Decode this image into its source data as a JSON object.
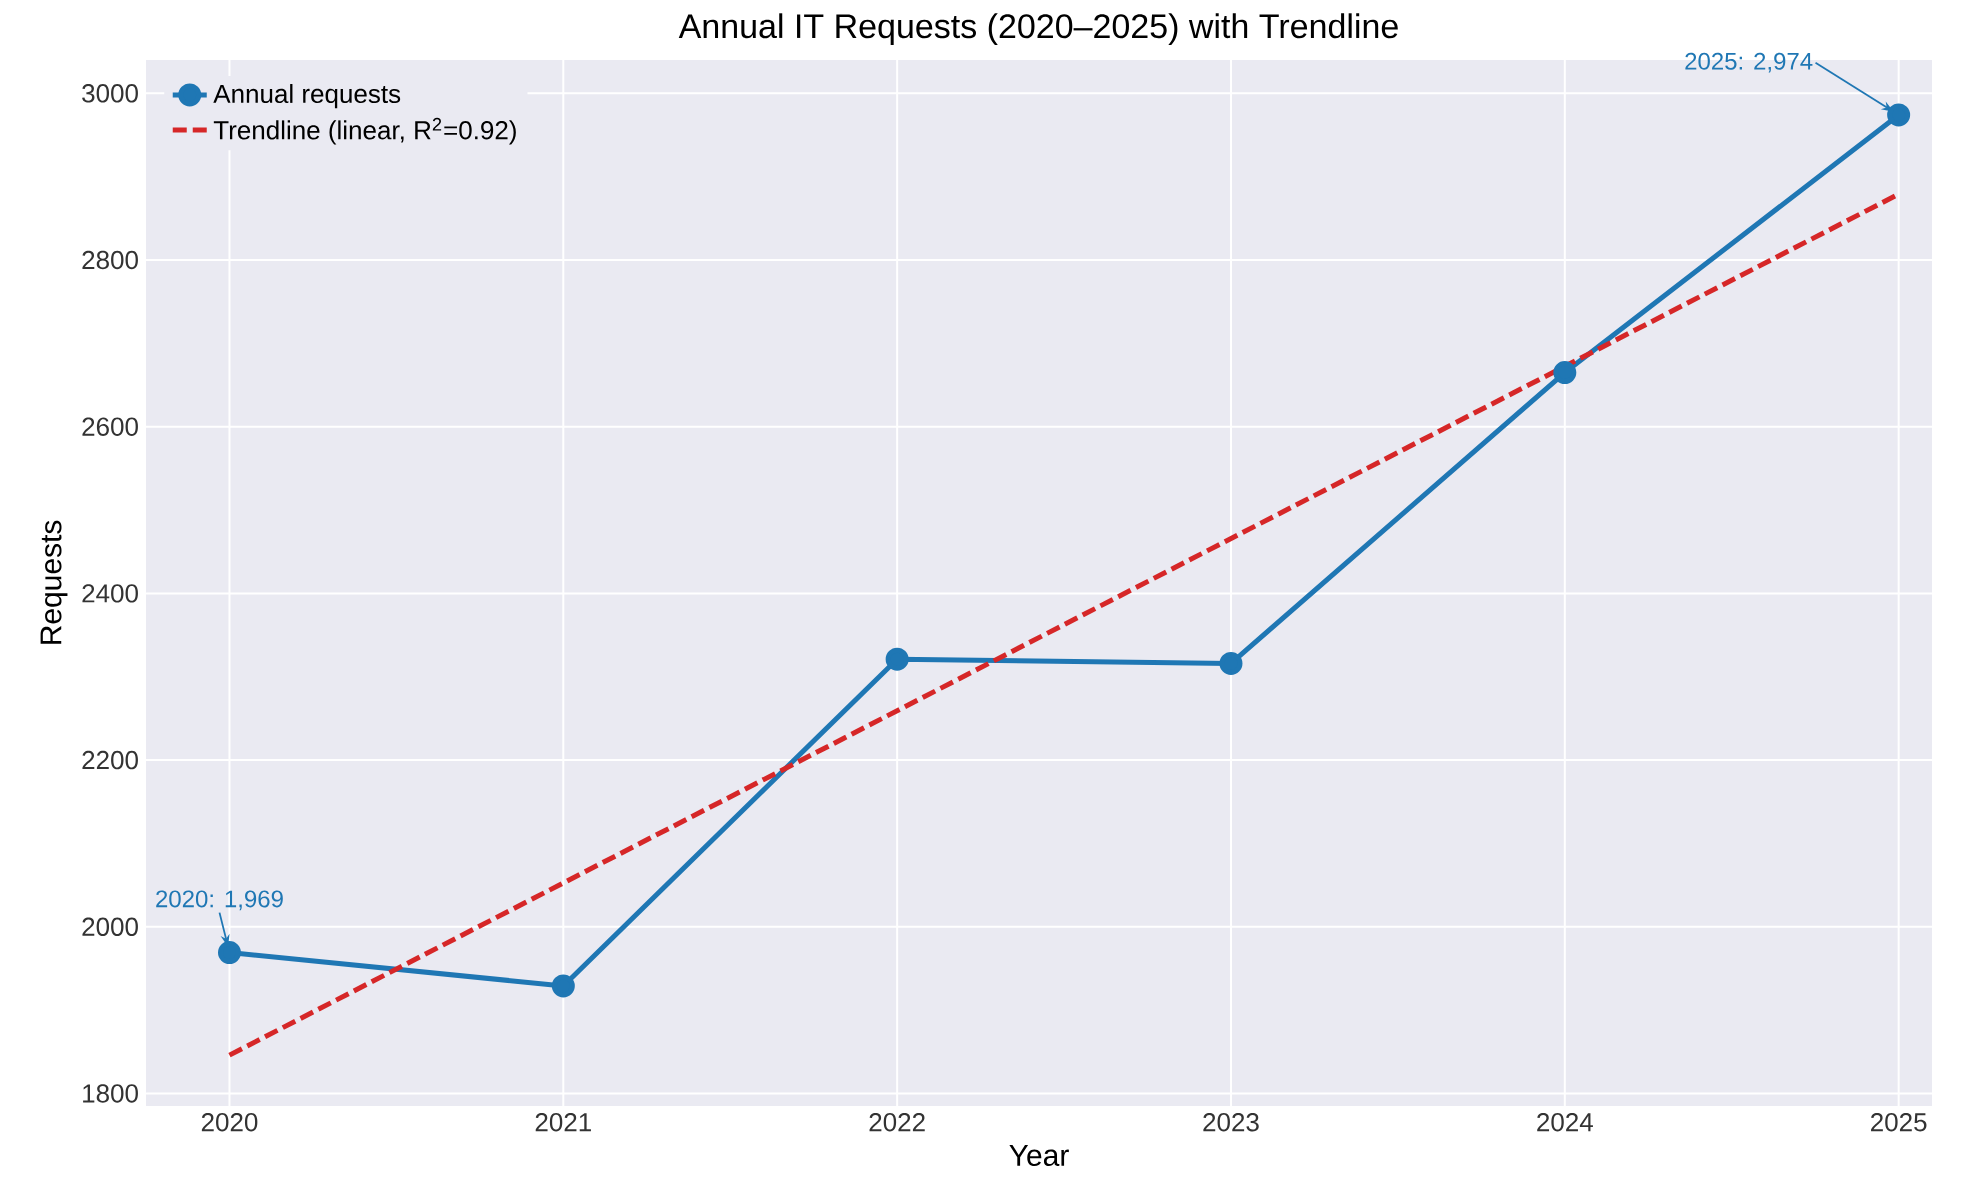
{
  "chart_data": {
    "type": "line",
    "title": "Annual IT Requests (2020–2025) with Trendline",
    "xlabel": "Year",
    "ylabel": "Requests",
    "x": [
      2020,
      2021,
      2022,
      2023,
      2024,
      2025
    ],
    "series": [
      {
        "name": "Annual requests",
        "color": "#1f77b4",
        "values": [
          1969,
          1929,
          2321,
          2316,
          2665,
          2974
        ],
        "marker": "circle",
        "line_style": "solid"
      },
      {
        "name": "Trendline (linear, R$^{2}$=0.92)",
        "type": "line",
        "color": "#d62728",
        "x": [
          2020,
          2025
        ],
        "values": [
          1846,
          2879
        ],
        "marker": "none",
        "line_style": "dashed"
      }
    ],
    "annotations": [
      {
        "text": "2020: 1,969",
        "x": 2020,
        "y": 1969
      },
      {
        "text": "2025: 2,974",
        "x": 2025,
        "y": 2974
      }
    ],
    "xlim": [
      2019.75,
      2025.1
    ],
    "ylim": [
      1785,
      3040
    ],
    "xticks": [
      2020,
      2021,
      2022,
      2023,
      2024,
      2025
    ],
    "yticks": [
      1800,
      2000,
      2200,
      2400,
      2600,
      2800,
      3000
    ],
    "grid": true,
    "legend": "top left"
  }
}
